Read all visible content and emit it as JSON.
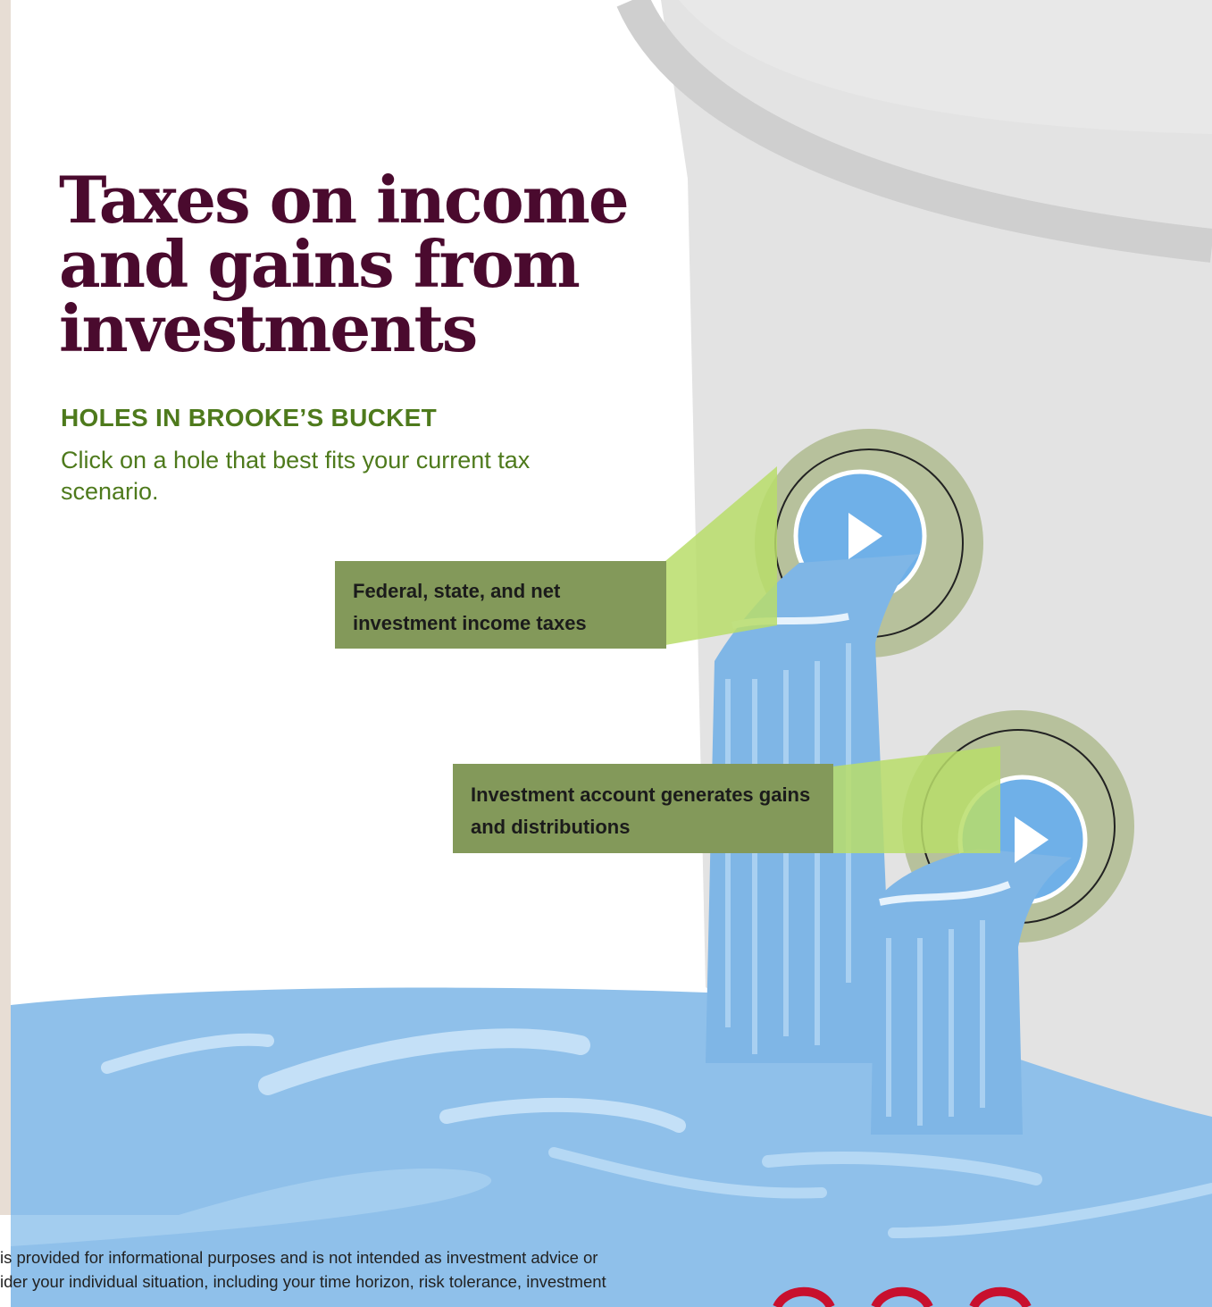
{
  "page": {
    "title": "Taxes on income and gains from investments",
    "subtitle": "HOLES IN BROOKE’S BUCKET",
    "instruction": "Click on a hole that best fits your current tax scenario."
  },
  "callouts": [
    {
      "label": "Federal, state, and net investment income taxes"
    },
    {
      "label": "Investment account generates gains and distributions"
    }
  ],
  "disclaimer": {
    "line1": " is provided for informational purposes and is not intended as investment advice or",
    "line2": "ider your individual situation, including your time horizon, risk tolerance, investment"
  },
  "icons": [
    "play-icon",
    "play-icon"
  ],
  "colors": {
    "title": "#4a0a2e",
    "accent_green": "#4e7a1c",
    "callout_bg": "#83995a",
    "callout_arrow": "#b9dd6a",
    "bucket": "#e3e3e3",
    "water": "#7fb6e6",
    "logo_red": "#c8102e"
  }
}
